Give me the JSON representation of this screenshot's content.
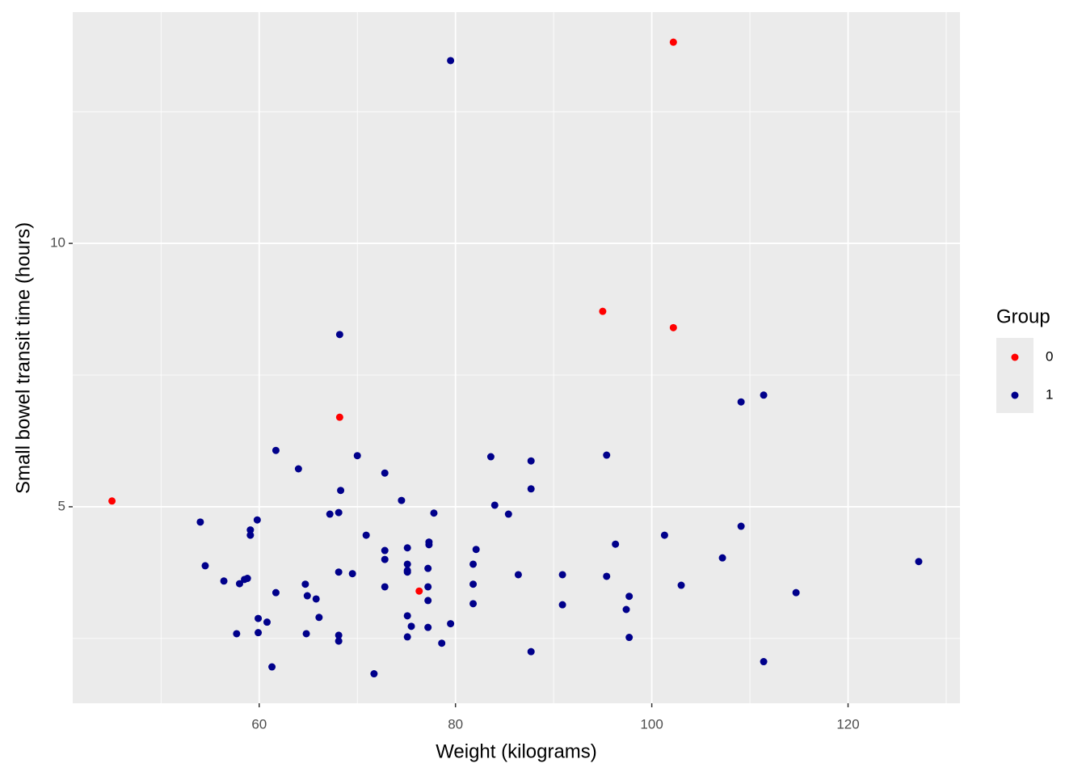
{
  "chart_data": {
    "type": "scatter",
    "x_label": "Weight (kilograms)",
    "y_label": "Small bowel transit time (hours)",
    "legend_title": "Group",
    "legend": "right",
    "grid": true,
    "xlim": [
      41.0,
      131.4
    ],
    "ylim": [
      1.27,
      14.39
    ],
    "xticks": [
      60,
      80,
      100,
      120
    ],
    "yticks": [
      5,
      10
    ],
    "minor_xticks": [
      50,
      70,
      90,
      110,
      130
    ],
    "minor_yticks": [
      2.5,
      7.5,
      12.5
    ],
    "series": [
      {
        "name": "0",
        "color": "#ff0000",
        "x": [
          45.0,
          102.2,
          95.0,
          102.2,
          68.2,
          76.3
        ],
        "values": [
          5.11,
          13.82,
          8.71,
          8.4,
          6.7,
          3.4
        ]
      },
      {
        "name": "1",
        "color": "#00008b",
        "x": [
          79.5,
          68.2,
          109.1,
          111.4,
          61.7,
          70.0,
          83.6,
          95.4,
          87.7,
          64.0,
          72.8,
          87.7,
          68.3,
          74.5,
          84.0,
          77.8,
          85.4,
          67.2,
          68.1,
          54.0,
          59.8,
          59.1,
          59.1,
          109.1,
          70.9,
          101.3,
          77.3,
          77.3,
          96.3,
          82.1,
          75.1,
          72.8,
          107.2,
          127.2,
          72.8,
          54.5,
          75.1,
          81.8,
          77.2,
          75.1,
          75.1,
          68.1,
          69.5,
          86.4,
          90.9,
          95.4,
          56.4,
          58.0,
          58.5,
          58.8,
          64.7,
          72.8,
          81.8,
          77.2,
          103.0,
          61.7,
          64.9,
          65.8,
          97.7,
          114.7,
          77.2,
          81.8,
          90.9,
          97.4,
          66.1,
          59.9,
          60.8,
          75.1,
          75.5,
          79.5,
          77.2,
          57.7,
          59.9,
          64.8,
          68.1,
          68.1,
          75.1,
          97.7,
          78.6,
          87.7,
          111.4,
          61.3,
          71.7
        ],
        "values": [
          13.47,
          8.27,
          6.99,
          7.12,
          6.07,
          5.97,
          5.95,
          5.98,
          5.87,
          5.72,
          5.64,
          5.34,
          5.31,
          5.12,
          5.03,
          4.88,
          4.86,
          4.86,
          4.89,
          4.71,
          4.75,
          4.56,
          4.46,
          4.63,
          4.46,
          4.46,
          4.33,
          4.28,
          4.29,
          4.19,
          4.22,
          4.17,
          4.03,
          3.96,
          4.0,
          3.88,
          3.91,
          3.91,
          3.83,
          3.79,
          3.76,
          3.76,
          3.73,
          3.71,
          3.71,
          3.68,
          3.59,
          3.54,
          3.62,
          3.64,
          3.53,
          3.48,
          3.53,
          3.48,
          3.51,
          3.37,
          3.31,
          3.25,
          3.3,
          3.37,
          3.22,
          3.16,
          3.14,
          3.05,
          2.9,
          2.88,
          2.81,
          2.93,
          2.73,
          2.78,
          2.71,
          2.59,
          2.61,
          2.59,
          2.56,
          2.45,
          2.53,
          2.52,
          2.41,
          2.25,
          2.06,
          1.96,
          1.83
        ]
      }
    ]
  }
}
